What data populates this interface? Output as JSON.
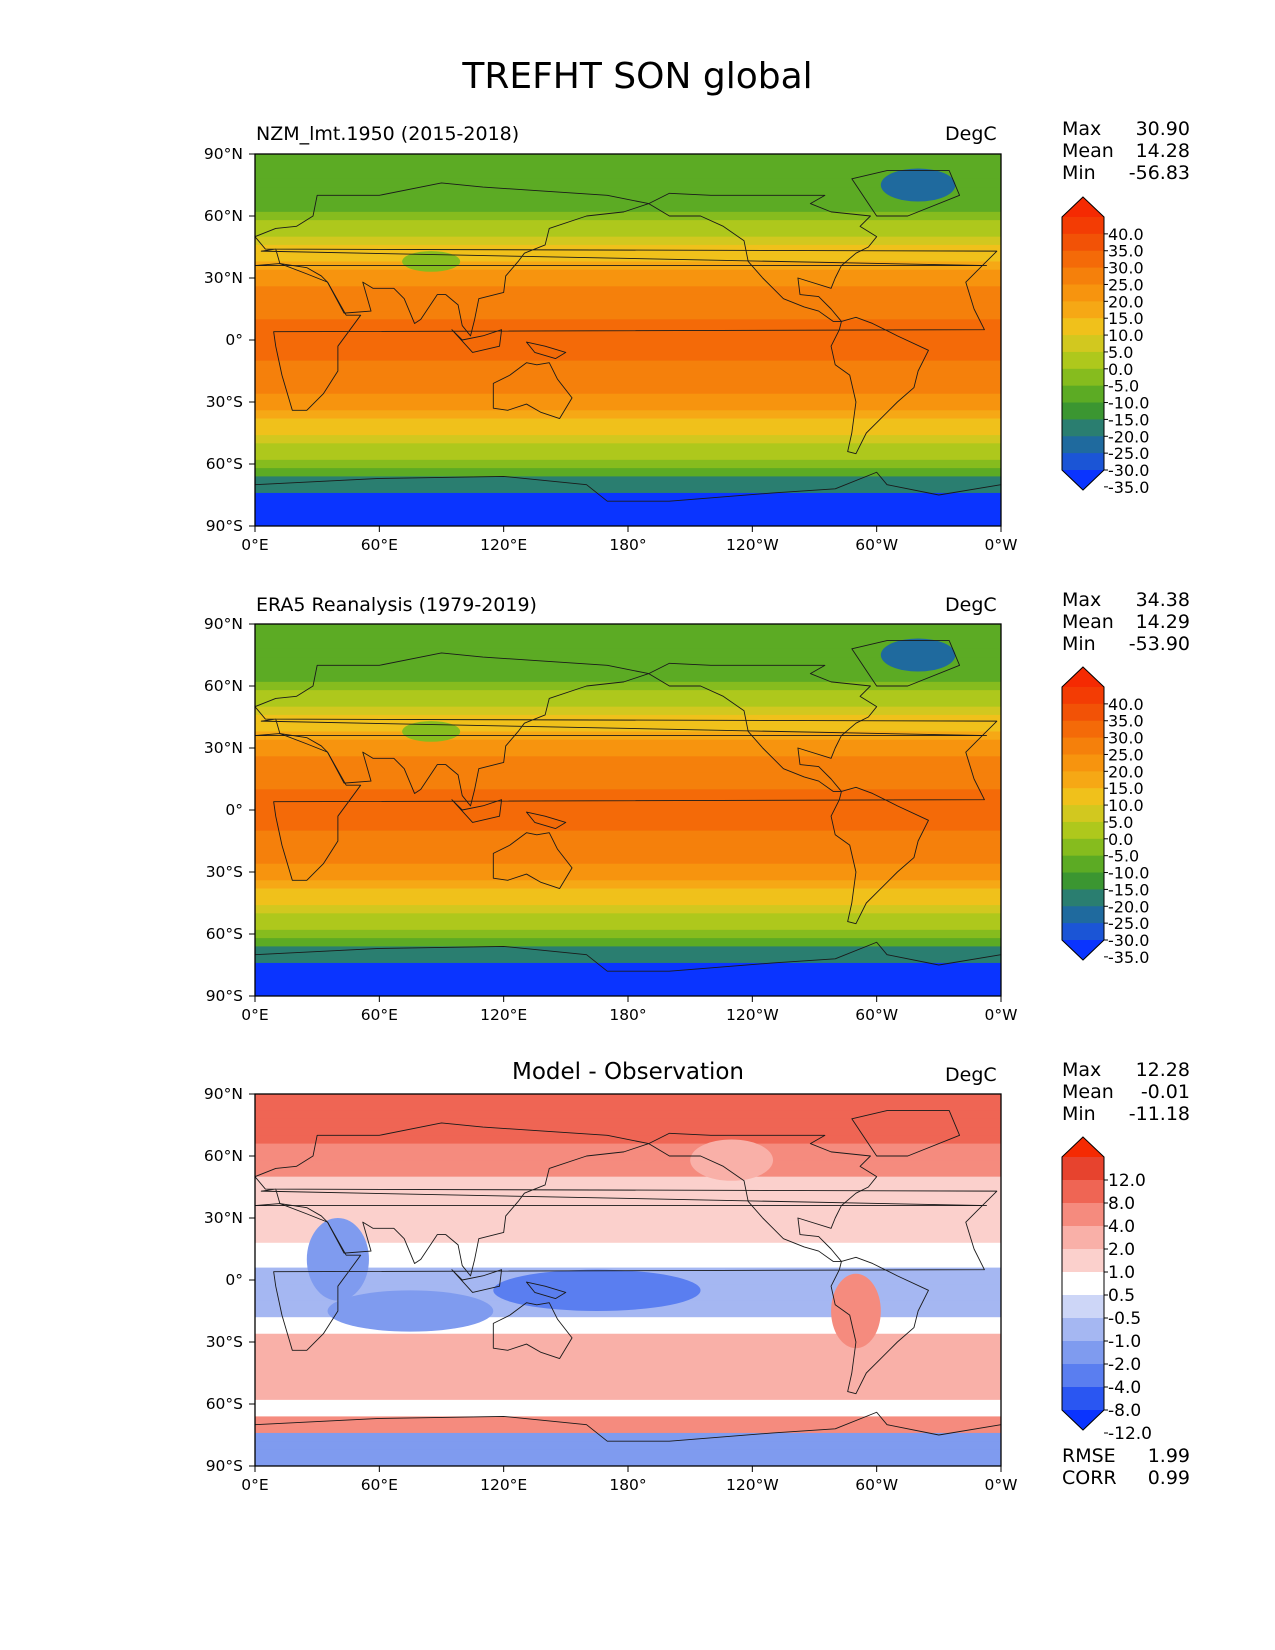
{
  "title": "TREFHT SON global",
  "axes": {
    "xticks": [
      "0°E",
      "60°E",
      "120°E",
      "180°",
      "120°W",
      "60°W",
      "0°W"
    ],
    "yticks": [
      "90°N",
      "60°N",
      "30°N",
      "0°",
      "30°S",
      "60°S",
      "90°S"
    ]
  },
  "panels": [
    {
      "title": "NZM_lmt.1950 (2015-2018)",
      "units": "DegC",
      "stats": [
        {
          "label": "Max",
          "value": "30.90"
        },
        {
          "label": "Mean",
          "value": "14.28"
        },
        {
          "label": "Min",
          "value": "-56.83"
        }
      ],
      "colorbar_labels": [
        "40.0",
        "35.0",
        "30.0",
        "25.0",
        "20.0",
        "15.0",
        "10.0",
        "5.0",
        "0.0",
        "-5.0",
        "-10.0",
        "-15.0",
        "-20.0",
        "-25.0",
        "-30.0",
        "-35.0"
      ]
    },
    {
      "title": "ERA5 Reanalysis (1979-2019)",
      "units": "DegC",
      "stats": [
        {
          "label": "Max",
          "value": "34.38"
        },
        {
          "label": "Mean",
          "value": "14.29"
        },
        {
          "label": "Min",
          "value": "-53.90"
        }
      ],
      "colorbar_labels": [
        "40.0",
        "35.0",
        "30.0",
        "25.0",
        "20.0",
        "15.0",
        "10.0",
        "5.0",
        "0.0",
        "-5.0",
        "-10.0",
        "-15.0",
        "-20.0",
        "-25.0",
        "-30.0",
        "-35.0"
      ]
    },
    {
      "title": "Model - Observation",
      "units": "DegC",
      "stats": [
        {
          "label": "Max",
          "value": "12.28"
        },
        {
          "label": "Mean",
          "value": "-0.01"
        },
        {
          "label": "Min",
          "value": "-11.18"
        }
      ],
      "colorbar_labels": [
        "12.0",
        "8.0",
        "4.0",
        "2.0",
        "1.0",
        "0.5",
        "-0.5",
        "-1.0",
        "-2.0",
        "-4.0",
        "-8.0",
        "-12.0"
      ],
      "extra_stats": [
        {
          "label": "RMSE",
          "value": "1.99"
        },
        {
          "label": "CORR",
          "value": "0.99"
        }
      ]
    }
  ],
  "chart_data": {
    "type": "heatmap",
    "title": "TREFHT SON global",
    "xlim": [
      0,
      360
    ],
    "ylim": [
      -90,
      90
    ],
    "xlabel": "",
    "ylabel": "",
    "levels_abs": [
      -35,
      -30,
      -25,
      -20,
      -15,
      -10,
      -5,
      0,
      5,
      10,
      15,
      20,
      25,
      30,
      35,
      40
    ],
    "levels_diff": [
      -12,
      -8,
      -4,
      -2,
      -1,
      -0.5,
      0.5,
      1,
      2,
      4,
      8,
      12
    ],
    "colors_abs": [
      "#0a34ff",
      "#1b55d6",
      "#1f6a9e",
      "#2a7e70",
      "#3b9631",
      "#5cab24",
      "#86bc1e",
      "#aec81c",
      "#d2c81f",
      "#f0c11b",
      "#f6a815",
      "#f7940e",
      "#f5800b",
      "#f46a08",
      "#f25206",
      "#f33c04",
      "#f52a02"
    ],
    "colors_diff": [
      "#0a34ff",
      "#2a56f2",
      "#5a7ef0",
      "#7f9bef",
      "#a5b7f2",
      "#cdd6f7",
      "#ffffff",
      "#fbd0cc",
      "#f9b0a8",
      "#f58b7e",
      "#ef6554",
      "#e7432e",
      "#f52a02"
    ],
    "series": [
      {
        "name": "NZM_lmt.1950 (2015-2018)",
        "max": 30.9,
        "mean": 14.28,
        "min": -56.83
      },
      {
        "name": "ERA5 Reanalysis (1979-2019)",
        "max": 34.38,
        "mean": 14.29,
        "min": -53.9
      },
      {
        "name": "Model - Observation",
        "max": 12.28,
        "mean": -0.01,
        "min": -11.18,
        "rmse": 1.99,
        "corr": 0.99
      }
    ]
  }
}
